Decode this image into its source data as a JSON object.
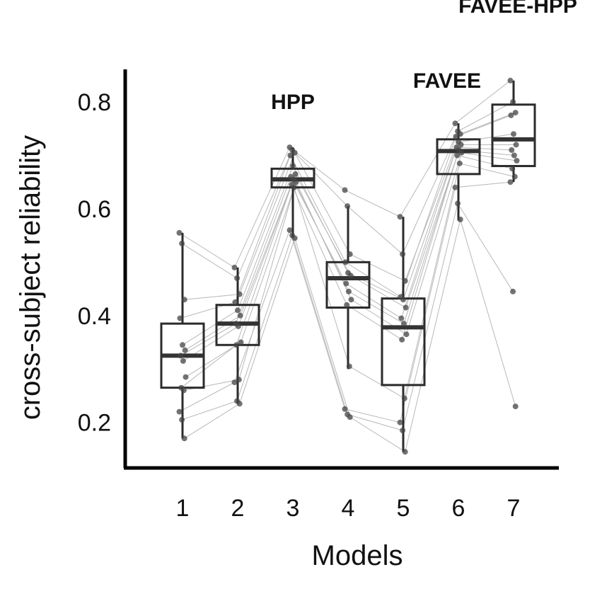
{
  "chart_data": {
    "type": "box",
    "xlabel": "Models",
    "ylabel": "cross-subject reliability",
    "categories": [
      "1",
      "2",
      "3",
      "4",
      "5",
      "6",
      "7"
    ],
    "yticks": [
      "0.2",
      "0.4",
      "0.6",
      "0.8"
    ],
    "ylim": [
      0.12,
      0.86
    ],
    "grid": false,
    "annotations": [
      {
        "text": "HPP",
        "category": "3",
        "y": 0.8
      },
      {
        "text": "FAVEE",
        "category": "6",
        "y": 0.84
      },
      {
        "text": "FAVEE-HPP",
        "category": "7",
        "y": 0.98
      }
    ],
    "boxes": [
      {
        "category": "1",
        "min": 0.17,
        "q1": 0.265,
        "median": 0.325,
        "q3": 0.385,
        "max": 0.555
      },
      {
        "category": "2",
        "min": 0.235,
        "q1": 0.345,
        "median": 0.385,
        "q3": 0.42,
        "max": 0.49
      },
      {
        "category": "3",
        "min": 0.545,
        "q1": 0.64,
        "median": 0.655,
        "q3": 0.675,
        "max": 0.715
      },
      {
        "category": "4",
        "min": 0.3,
        "q1": 0.415,
        "median": 0.47,
        "q3": 0.5,
        "max": 0.605
      },
      {
        "category": "5",
        "min": 0.145,
        "q1": 0.27,
        "median": 0.378,
        "q3": 0.432,
        "max": 0.585
      },
      {
        "category": "6",
        "min": 0.578,
        "q1": 0.665,
        "median": 0.708,
        "q3": 0.73,
        "max": 0.76
      },
      {
        "category": "7",
        "min": 0.65,
        "q1": 0.68,
        "median": 0.73,
        "q3": 0.795,
        "max": 0.84
      }
    ],
    "subjects": [
      [
        0.555,
        0.49,
        0.715,
        0.635,
        0.585,
        0.76,
        0.84
      ],
      [
        0.535,
        0.47,
        0.71,
        0.605,
        0.515,
        0.745,
        0.8
      ],
      [
        0.43,
        0.44,
        0.705,
        0.515,
        0.465,
        0.74,
        0.78
      ],
      [
        0.395,
        0.425,
        0.7,
        0.5,
        0.435,
        0.735,
        0.775
      ],
      [
        0.345,
        0.41,
        0.68,
        0.48,
        0.43,
        0.725,
        0.74
      ],
      [
        0.335,
        0.4,
        0.665,
        0.475,
        0.415,
        0.72,
        0.72
      ],
      [
        0.325,
        0.385,
        0.66,
        0.46,
        0.395,
        0.715,
        0.71
      ],
      [
        0.315,
        0.38,
        0.655,
        0.445,
        0.385,
        0.71,
        0.7
      ],
      [
        0.285,
        0.35,
        0.65,
        0.43,
        0.365,
        0.705,
        0.69
      ],
      [
        0.265,
        0.345,
        0.645,
        0.42,
        0.355,
        0.7,
        0.675
      ],
      [
        0.26,
        0.28,
        0.64,
        0.305,
        0.245,
        0.685,
        0.66
      ],
      [
        0.22,
        0.275,
        0.56,
        0.225,
        0.2,
        0.64,
        0.65
      ],
      [
        0.205,
        0.24,
        0.55,
        0.215,
        0.185,
        0.61,
        0.445
      ],
      [
        0.17,
        0.235,
        0.545,
        0.21,
        0.145,
        0.58,
        0.23
      ]
    ]
  },
  "colors": {
    "box_stroke": "#2b2b2b",
    "median": "#333333",
    "point": "#444444",
    "line": "#b8b8b8",
    "axis": "#000000"
  }
}
